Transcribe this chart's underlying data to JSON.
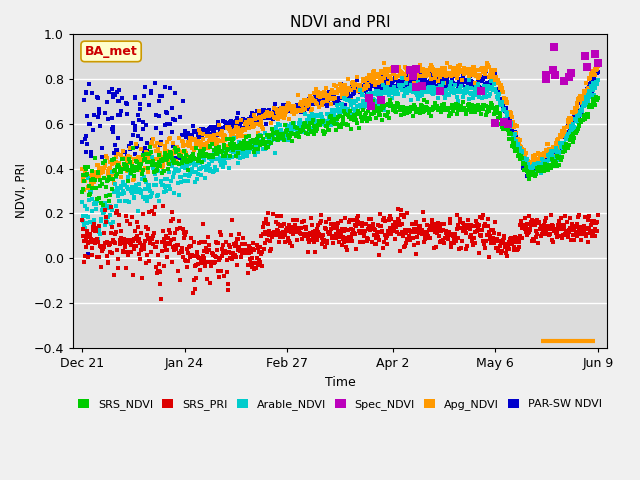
{
  "title": "NDVI and PRI",
  "xlabel": "Time",
  "ylabel": "NDVI, PRI",
  "ylim": [
    -0.4,
    1.0
  ],
  "yticks": [
    -0.4,
    -0.2,
    0.0,
    0.2,
    0.4,
    0.6,
    0.8,
    1.0
  ],
  "xtick_labels": [
    "Dec 21",
    "Jan 24",
    "Feb 27",
    "Apr 2",
    "May 6",
    "Jun 9"
  ],
  "fig_bg_color": "#f0f0f0",
  "plot_bg_color": "#dcdcdc",
  "legend_items": [
    {
      "label": "SRS_NDVI",
      "color": "#00cc00"
    },
    {
      "label": "SRS_PRI",
      "color": "#dd0000"
    },
    {
      "label": "Arable_NDVI",
      "color": "#00cccc"
    },
    {
      "label": "Spec_NDVI",
      "color": "#bb00bb"
    },
    {
      "label": "Apg_NDVI",
      "color": "#ff9900"
    },
    {
      "label": "PAR-SW NDVI",
      "color": "#0000cc"
    }
  ],
  "ba_met_label": "BA_met",
  "ba_met_color": "#cc0000",
  "ba_met_bg": "#ffffcc",
  "ba_met_edge": "#cc9900",
  "orange_line_color": "#ff9900"
}
